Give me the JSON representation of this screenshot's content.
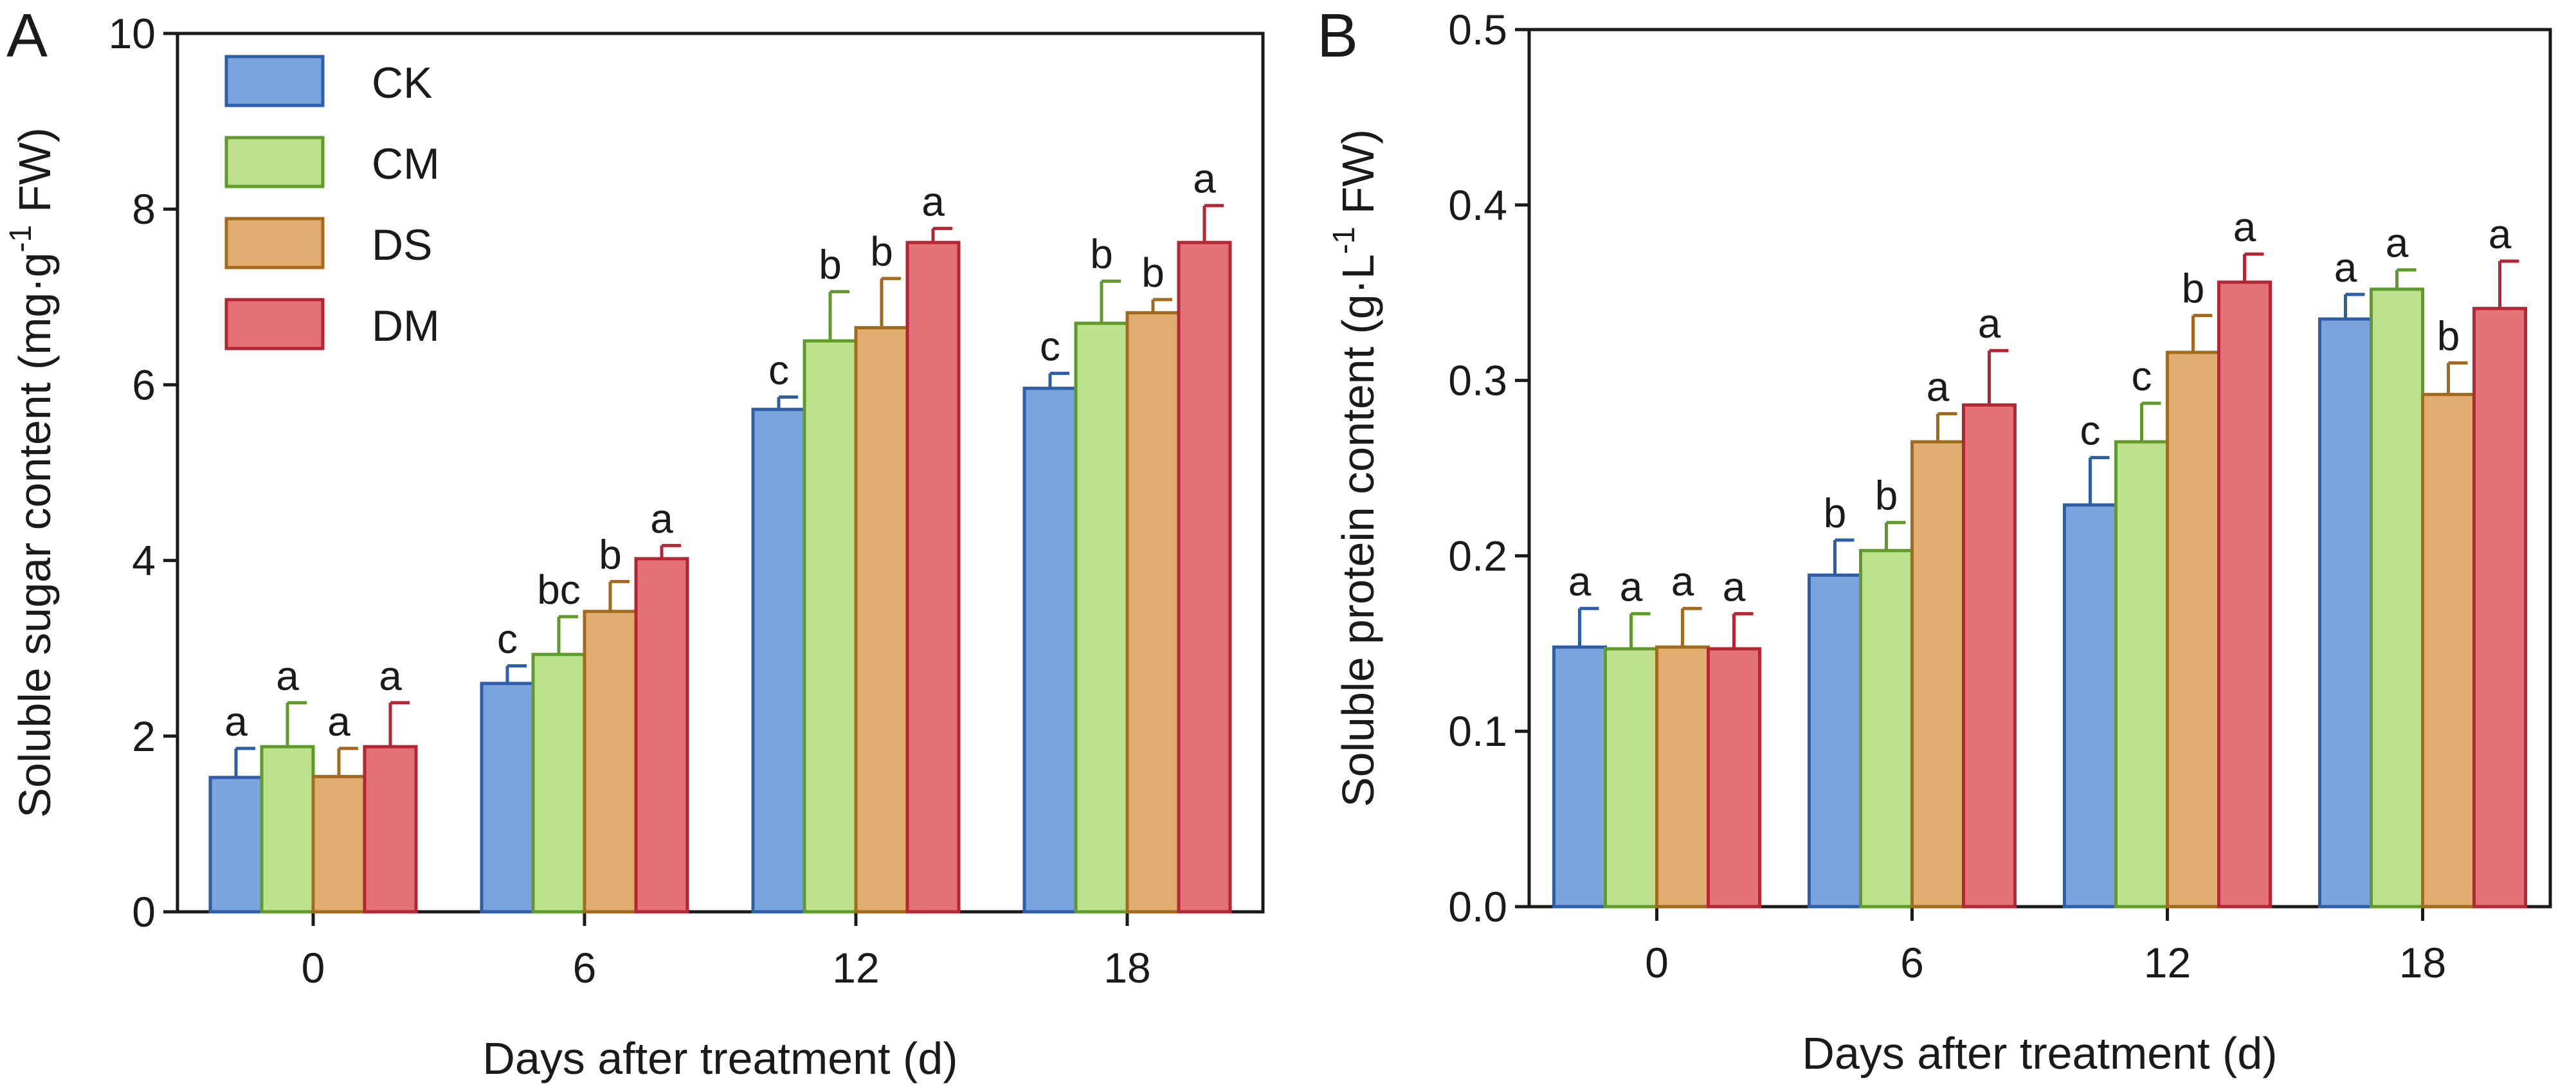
{
  "chart_data": [
    {
      "type": "bar",
      "panel_label": "A",
      "categories": [
        "0",
        "6",
        "12",
        "18"
      ],
      "xlabel": "Days after treatment (d)",
      "ylabel_main": "Soluble sugar content (mg·g",
      "ylabel_sup": "-1",
      "ylabel_tail": " FW)",
      "ylim": [
        0,
        10
      ],
      "yticks": [
        "0",
        "2",
        "4",
        "6",
        "8",
        "10"
      ],
      "ytick_values": [
        0,
        2,
        4,
        6,
        8,
        10
      ],
      "legend_position": "top-left",
      "series": [
        {
          "name": "CK",
          "values": [
            1.53,
            2.6,
            5.72,
            5.96
          ],
          "errors": [
            0.33,
            0.2,
            0.14,
            0.17
          ],
          "letters": [
            "a",
            "c",
            "c",
            "c"
          ]
        },
        {
          "name": "CM",
          "values": [
            1.88,
            2.93,
            6.5,
            6.7
          ],
          "errors": [
            0.5,
            0.43,
            0.56,
            0.48
          ],
          "letters": [
            "a",
            "bc",
            "b",
            "b"
          ]
        },
        {
          "name": "DS",
          "values": [
            1.54,
            3.42,
            6.65,
            6.82
          ],
          "errors": [
            0.32,
            0.34,
            0.56,
            0.15
          ],
          "letters": [
            "a",
            "b",
            "b",
            "b"
          ]
        },
        {
          "name": "DM",
          "values": [
            1.88,
            4.02,
            7.62,
            7.62
          ],
          "errors": [
            0.5,
            0.15,
            0.16,
            0.42
          ],
          "letters": [
            "a",
            "a",
            "a",
            "a"
          ]
        }
      ]
    },
    {
      "type": "bar",
      "panel_label": "B",
      "categories": [
        "0",
        "6",
        "12",
        "18"
      ],
      "xlabel": "Days after treatment (d)",
      "ylabel_main": "Soluble protein content (g·L",
      "ylabel_sup": "-1",
      "ylabel_tail": " FW)",
      "ylim": [
        0,
        0.5
      ],
      "yticks": [
        "0.0",
        "0.1",
        "0.2",
        "0.3",
        "0.4",
        "0.5"
      ],
      "ytick_values": [
        0,
        0.1,
        0.2,
        0.3,
        0.4,
        0.5
      ],
      "series": [
        {
          "name": "CK",
          "values": [
            0.148,
            0.189,
            0.229,
            0.335
          ],
          "errors": [
            0.022,
            0.02,
            0.027,
            0.014
          ],
          "letters": [
            "a",
            "b",
            "c",
            "a"
          ]
        },
        {
          "name": "CM",
          "values": [
            0.147,
            0.203,
            0.265,
            0.352
          ],
          "errors": [
            0.02,
            0.016,
            0.022,
            0.011
          ],
          "letters": [
            "a",
            "b",
            "c",
            "a"
          ]
        },
        {
          "name": "DS",
          "values": [
            0.148,
            0.265,
            0.316,
            0.292
          ],
          "errors": [
            0.022,
            0.016,
            0.021,
            0.018
          ],
          "letters": [
            "a",
            "a",
            "b",
            "b"
          ]
        },
        {
          "name": "DM",
          "values": [
            0.147,
            0.286,
            0.356,
            0.341
          ],
          "errors": [
            0.02,
            0.031,
            0.016,
            0.027
          ],
          "letters": [
            "a",
            "a",
            "a",
            "a"
          ]
        }
      ]
    }
  ],
  "colors": {
    "CK": {
      "fill": "#7aa4db",
      "stroke": "#2f5ea8"
    },
    "CM": {
      "fill": "#bde18c",
      "stroke": "#5f9a2a"
    },
    "DS": {
      "fill": "#e0ac70",
      "stroke": "#a36a1e"
    },
    "DM": {
      "fill": "#e27178",
      "stroke": "#b32634"
    },
    "axis": "#1a1a1a"
  }
}
